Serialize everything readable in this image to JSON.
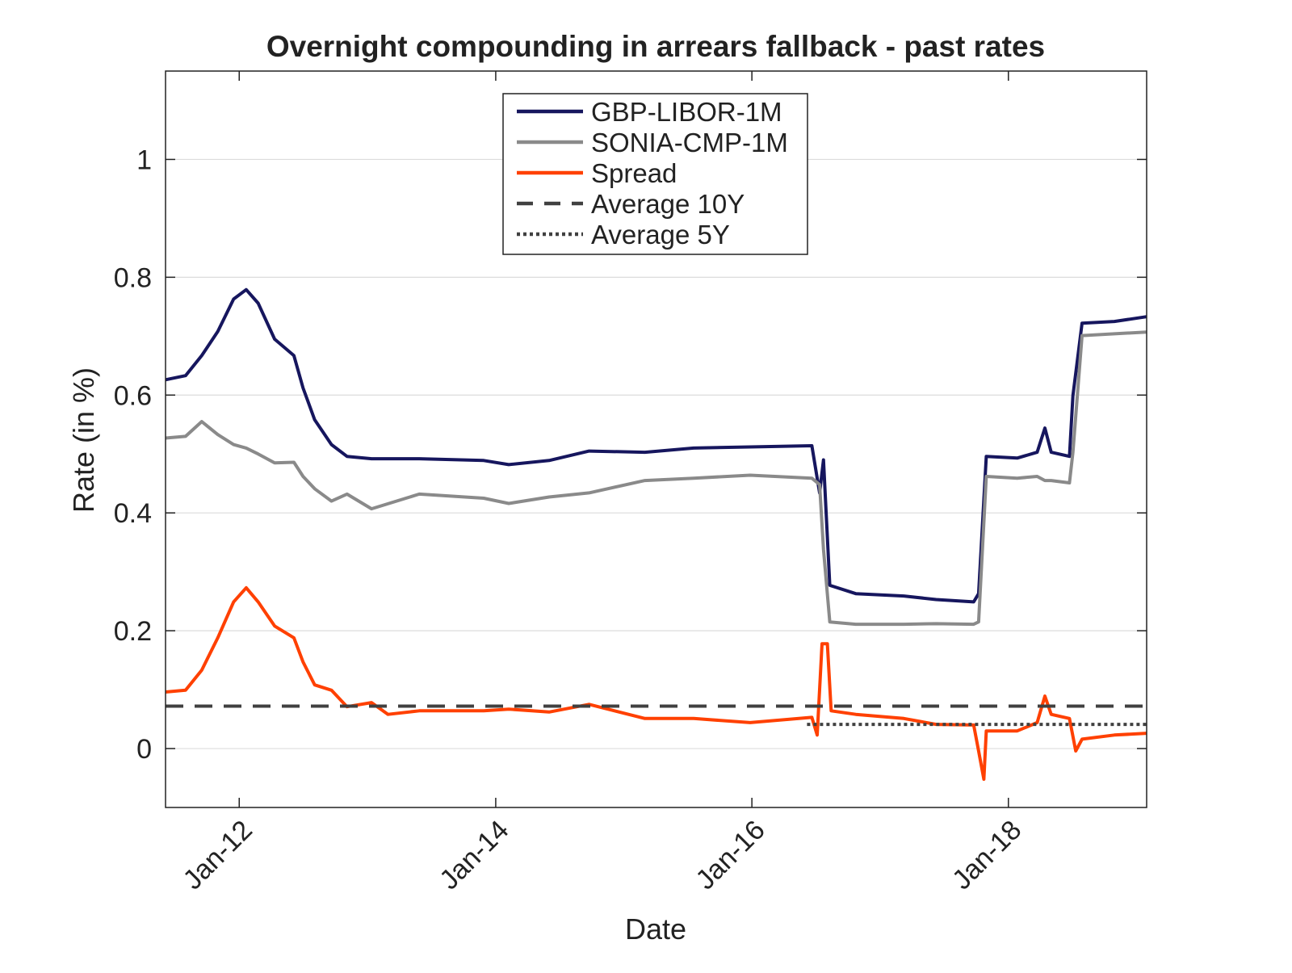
{
  "chart_data": {
    "type": "line",
    "title": "Overnight compounding in arrears fallback - past rates",
    "xlabel": "Date",
    "ylabel": "Rate (in %)",
    "xlim": [
      "2011-06-05",
      "2019-01-30"
    ],
    "ylim": [
      -0.1,
      1.15
    ],
    "grid": "horizontal",
    "legend_placement": "top-center",
    "x_ticks": [
      {
        "date": "2012-01-01",
        "label": "Jan-12"
      },
      {
        "date": "2014-01-01",
        "label": "Jan-14"
      },
      {
        "date": "2016-01-01",
        "label": "Jan-16"
      },
      {
        "date": "2018-01-01",
        "label": "Jan-18"
      }
    ],
    "y_ticks": [
      {
        "value": 0,
        "label": "0"
      },
      {
        "value": 0.2,
        "label": "0.2"
      },
      {
        "value": 0.4,
        "label": "0.4"
      },
      {
        "value": 0.6,
        "label": "0.6"
      },
      {
        "value": 0.8,
        "label": "0.8"
      },
      {
        "value": 1,
        "label": "1"
      }
    ],
    "series": [
      {
        "name": "GBP-LIBOR-1M",
        "color": "#16165e",
        "style": "solid",
        "x": [
          "2011-06-05",
          "2011-08-01",
          "2011-09-16",
          "2011-11-01",
          "2011-12-16",
          "2012-01-21",
          "2012-02-24",
          "2012-04-11",
          "2012-06-05",
          "2012-07-01",
          "2012-08-03",
          "2012-09-20",
          "2012-11-03",
          "2013-01-12",
          "2013-05-28",
          "2013-11-28",
          "2014-02-07",
          "2014-06-02",
          "2014-09-24",
          "2015-03-02",
          "2015-07-19",
          "2015-12-27",
          "2016-06-20",
          "2016-07-12",
          "2016-07-23",
          "2016-08-10",
          "2016-10-23",
          "2017-03-09",
          "2017-06-09",
          "2017-09-24",
          "2017-10-08",
          "2017-10-30",
          "2018-01-26",
          "2018-03-24",
          "2018-04-15",
          "2018-05-03",
          "2018-06-24",
          "2018-07-04",
          "2018-07-30",
          "2018-10-30",
          "2019-01-30"
        ],
        "y": [
          0.626,
          0.633,
          0.667,
          0.708,
          0.763,
          0.779,
          0.756,
          0.695,
          0.667,
          0.612,
          0.558,
          0.516,
          0.496,
          0.492,
          0.492,
          0.489,
          0.482,
          0.489,
          0.505,
          0.503,
          0.51,
          0.512,
          0.514,
          0.434,
          0.49,
          0.277,
          0.263,
          0.259,
          0.253,
          0.249,
          0.263,
          0.496,
          0.493,
          0.503,
          0.544,
          0.503,
          0.496,
          0.599,
          0.722,
          0.725,
          0.733
        ]
      },
      {
        "name": "SONIA-CMP-1M",
        "color": "#8a8a8a",
        "style": "solid",
        "x": [
          "2011-06-05",
          "2011-08-01",
          "2011-09-16",
          "2011-11-01",
          "2011-12-16",
          "2012-01-21",
          "2012-02-24",
          "2012-04-11",
          "2012-06-05",
          "2012-07-01",
          "2012-08-03",
          "2012-09-20",
          "2012-11-03",
          "2013-01-12",
          "2013-05-28",
          "2013-11-28",
          "2014-02-07",
          "2014-06-02",
          "2014-09-24",
          "2015-03-02",
          "2015-07-19",
          "2015-12-27",
          "2016-06-20",
          "2016-07-12",
          "2016-07-23",
          "2016-08-10",
          "2016-10-23",
          "2017-03-09",
          "2017-06-09",
          "2017-09-24",
          "2017-10-08",
          "2017-10-30",
          "2018-01-26",
          "2018-03-24",
          "2018-04-15",
          "2018-05-03",
          "2018-06-24",
          "2018-07-04",
          "2018-07-30",
          "2018-10-30",
          "2019-01-30"
        ],
        "y": [
          0.527,
          0.53,
          0.555,
          0.533,
          0.516,
          0.51,
          0.5,
          0.485,
          0.486,
          0.462,
          0.441,
          0.42,
          0.432,
          0.407,
          0.432,
          0.425,
          0.416,
          0.427,
          0.434,
          0.455,
          0.459,
          0.464,
          0.459,
          0.448,
          0.338,
          0.215,
          0.211,
          0.211,
          0.212,
          0.211,
          0.215,
          0.462,
          0.459,
          0.462,
          0.455,
          0.455,
          0.451,
          0.503,
          0.701,
          0.704,
          0.707
        ]
      },
      {
        "name": "Spread",
        "color": "#ff4000",
        "style": "solid",
        "x": [
          "2011-06-05",
          "2011-08-01",
          "2011-09-16",
          "2011-11-01",
          "2011-12-16",
          "2012-01-21",
          "2012-02-24",
          "2012-04-11",
          "2012-06-05",
          "2012-07-01",
          "2012-08-03",
          "2012-09-20",
          "2012-11-03",
          "2013-01-12",
          "2013-02-28",
          "2013-05-28",
          "2013-11-28",
          "2014-02-07",
          "2014-06-02",
          "2014-09-24",
          "2015-03-02",
          "2015-07-19",
          "2015-12-27",
          "2016-06-20",
          "2016-07-05",
          "2016-07-19",
          "2016-08-03",
          "2016-08-14",
          "2016-10-23",
          "2017-03-09",
          "2017-06-09",
          "2017-09-24",
          "2017-10-08",
          "2017-10-23",
          "2017-10-30",
          "2018-01-26",
          "2018-03-24",
          "2018-04-15",
          "2018-05-03",
          "2018-06-24",
          "2018-07-12",
          "2018-07-30",
          "2018-10-30",
          "2019-01-30"
        ],
        "y": [
          0.096,
          0.099,
          0.133,
          0.188,
          0.249,
          0.273,
          0.249,
          0.208,
          0.188,
          0.147,
          0.108,
          0.099,
          0.071,
          0.078,
          0.058,
          0.064,
          0.064,
          0.067,
          0.062,
          0.075,
          0.051,
          0.051,
          0.044,
          0.053,
          0.023,
          0.178,
          0.178,
          0.064,
          0.058,
          0.051,
          0.041,
          0.04,
          -0.004,
          -0.052,
          0.03,
          0.03,
          0.044,
          0.089,
          0.058,
          0.051,
          -0.004,
          0.016,
          0.023,
          0.026
        ]
      },
      {
        "name": "Average 10Y",
        "color": "#404040",
        "style": "dashed",
        "x": [
          "2011-06-05",
          "2019-01-30"
        ],
        "y": [
          0.072,
          0.072
        ]
      },
      {
        "name": "Average 5Y",
        "color": "#404040",
        "style": "dotted",
        "x": [
          "2016-06-06",
          "2019-01-30"
        ],
        "y": [
          0.041,
          0.041
        ]
      }
    ]
  }
}
